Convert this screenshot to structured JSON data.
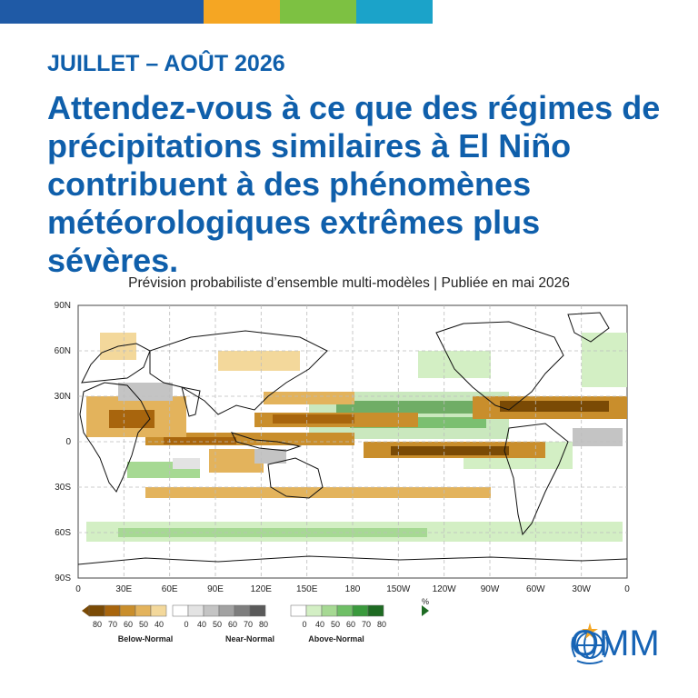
{
  "brand": {
    "colors": [
      "#1f5aa6",
      "#f5a623",
      "#7dc142",
      "#1ba3c9"
    ],
    "accent": "#0f5fab",
    "logo_text": "OMM",
    "logo_icon": "wmo-emblem-icon"
  },
  "header": {
    "date_label": "JUILLET – AOÛT 2026",
    "headline": "Attendez-vous à ce que des régimes de précipitations similaires à El Niño contribuent à des phénomènes météorologiques extrêmes plus sévères.",
    "subtitle": "Prévision probabiliste d’ensemble multi-modèles | Publiée en mai 2026"
  },
  "map": {
    "lat_ticks": [
      "90N",
      "60N",
      "30N",
      "0",
      "30S",
      "60S",
      "90S"
    ],
    "lon_ticks": [
      "0",
      "30E",
      "60E",
      "90E",
      "120E",
      "150E",
      "180",
      "150W",
      "120W",
      "90W",
      "60W",
      "30W",
      "0"
    ]
  },
  "legend": {
    "unit": "%",
    "below": {
      "label": "Below-Normal",
      "ticks": [
        "80",
        "70",
        "60",
        "50",
        "40"
      ],
      "colors": [
        "#7a4a05",
        "#a8650d",
        "#c98e2c",
        "#e3b35c",
        "#f3d89b"
      ]
    },
    "near": {
      "label": "Near-Normal",
      "ticks": [
        "0",
        "40",
        "50",
        "60",
        "70",
        "80"
      ],
      "colors": [
        "#ffffff",
        "#e3e3e3",
        "#c4c4c4",
        "#a2a2a2",
        "#7e7e7e",
        "#5a5a5a"
      ]
    },
    "above": {
      "label": "Above-Normal",
      "ticks": [
        "0",
        "40",
        "50",
        "60",
        "70",
        "80"
      ],
      "colors": [
        "#ffffff",
        "#d3efc4",
        "#a6d993",
        "#6fbf66",
        "#3a9a3d",
        "#1e6b23"
      ]
    }
  }
}
